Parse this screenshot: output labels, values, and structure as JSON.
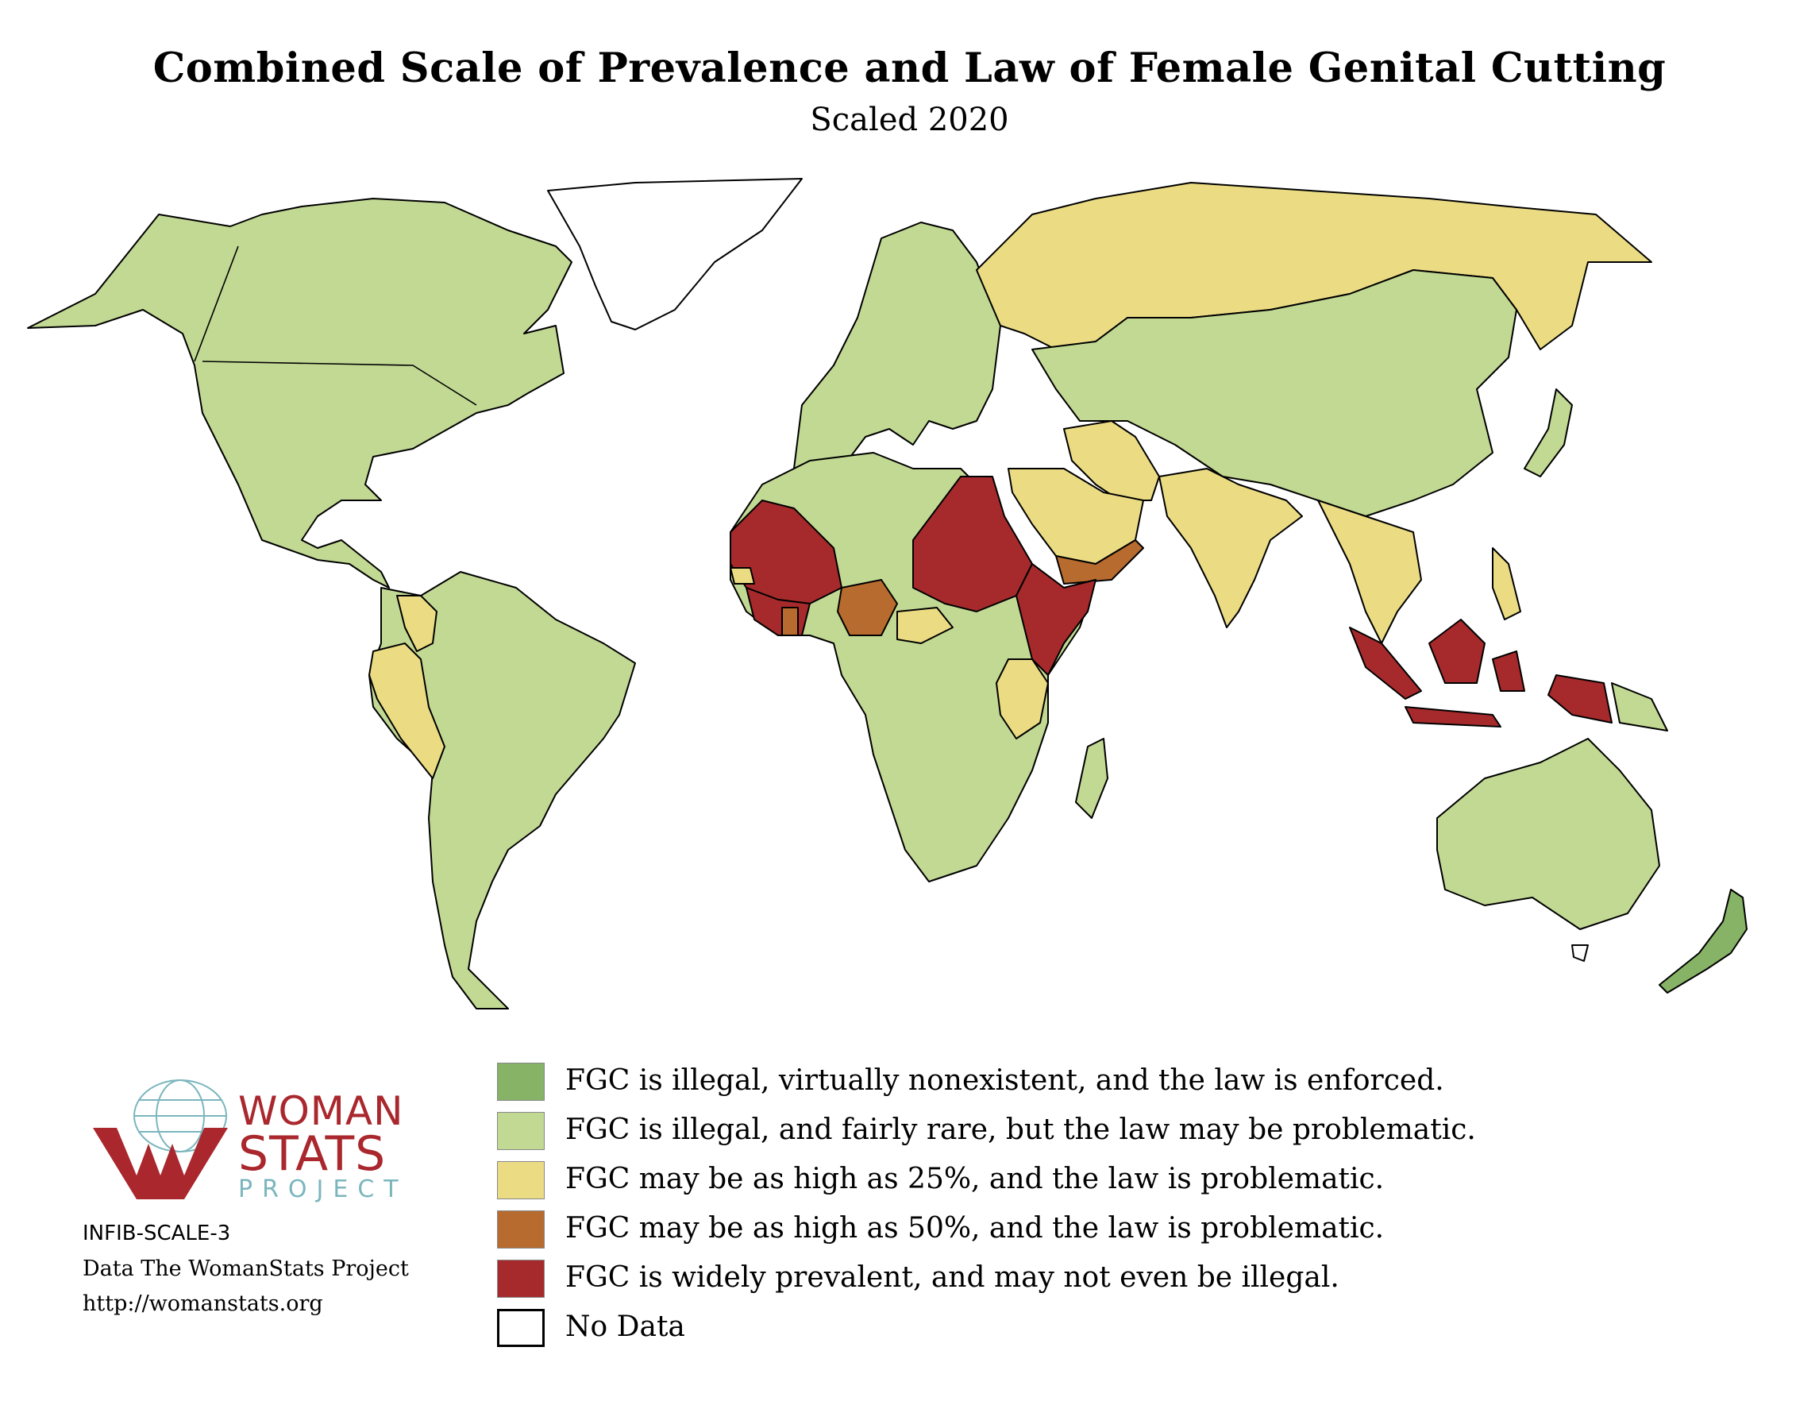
{
  "title": "Combined Scale of Prevalence and Law of Female Genital Cutting",
  "subtitle": "Scaled 2020",
  "colors": {
    "level1": "#86b366",
    "level2": "#c2d994",
    "level3": "#ebdc84",
    "level4": "#b86b2e",
    "level5": "#a62a2c",
    "nodata": "#ffffff"
  },
  "legend": [
    {
      "level": "level1",
      "label": "FGC is illegal, virtually nonexistent, and the law is enforced."
    },
    {
      "level": "level2",
      "label": "FGC is illegal, and fairly rare, but the law may be problematic."
    },
    {
      "level": "level3",
      "label": "FGC may be as high as 25%, and the law is problematic."
    },
    {
      "level": "level4",
      "label": "FGC may be as high as 50%, and the law is problematic."
    },
    {
      "level": "level5",
      "label": "FGC is widely prevalent, and may not even be illegal."
    },
    {
      "level": "nodata",
      "label": "No Data"
    }
  ],
  "logo": {
    "line1": "WOMAN",
    "line2": "STATS",
    "line3": "PROJECT"
  },
  "footer": {
    "code": "INFIB-SCALE-3",
    "credit": "Data The WomanStats Project",
    "url": "http://womanstats.org"
  },
  "map_regions": [
    {
      "region": "North America",
      "level": "level2"
    },
    {
      "region": "Greenland",
      "level": "nodata"
    },
    {
      "region": "Colombia",
      "level": "level3"
    },
    {
      "region": "Ecuador",
      "level": "level3"
    },
    {
      "region": "Peru",
      "level": "level3"
    },
    {
      "region": "South America",
      "level": "level2"
    },
    {
      "region": "Europe",
      "level": "level2"
    },
    {
      "region": "Russia",
      "level": "level3"
    },
    {
      "region": "China",
      "level": "level2"
    },
    {
      "region": "Iran",
      "level": "level3"
    },
    {
      "region": "Saudi Arabia",
      "level": "level3"
    },
    {
      "region": "India",
      "level": "level3"
    },
    {
      "region": "Yemen",
      "level": "level4"
    },
    {
      "region": "Mauritania",
      "level": "level5"
    },
    {
      "region": "Mali",
      "level": "level5"
    },
    {
      "region": "Niger",
      "level": "level2"
    },
    {
      "region": "Chad",
      "level": "level5"
    },
    {
      "region": "Egypt",
      "level": "level5"
    },
    {
      "region": "Sudan",
      "level": "level5"
    },
    {
      "region": "Ethiopia",
      "level": "level5"
    },
    {
      "region": "Somalia",
      "level": "level5"
    },
    {
      "region": "Nigeria",
      "level": "level4"
    },
    {
      "region": "Ghana",
      "level": "level4"
    },
    {
      "region": "West Africa coast",
      "level": "level5"
    },
    {
      "region": "Senegal",
      "level": "level3"
    },
    {
      "region": "Cameroon",
      "level": "level3"
    },
    {
      "region": "Kenya",
      "level": "level3"
    },
    {
      "region": "Tanzania",
      "level": "level3"
    },
    {
      "region": "Central and Southern Africa",
      "level": "level2"
    },
    {
      "region": "Madagascar",
      "level": "level2"
    },
    {
      "region": "Southeast Asia",
      "level": "level3"
    },
    {
      "region": "Indonesia",
      "level": "level5"
    },
    {
      "region": "Papua New Guinea",
      "level": "level2"
    },
    {
      "region": "Australia",
      "level": "level2"
    },
    {
      "region": "New Zealand",
      "level": "level1"
    }
  ]
}
